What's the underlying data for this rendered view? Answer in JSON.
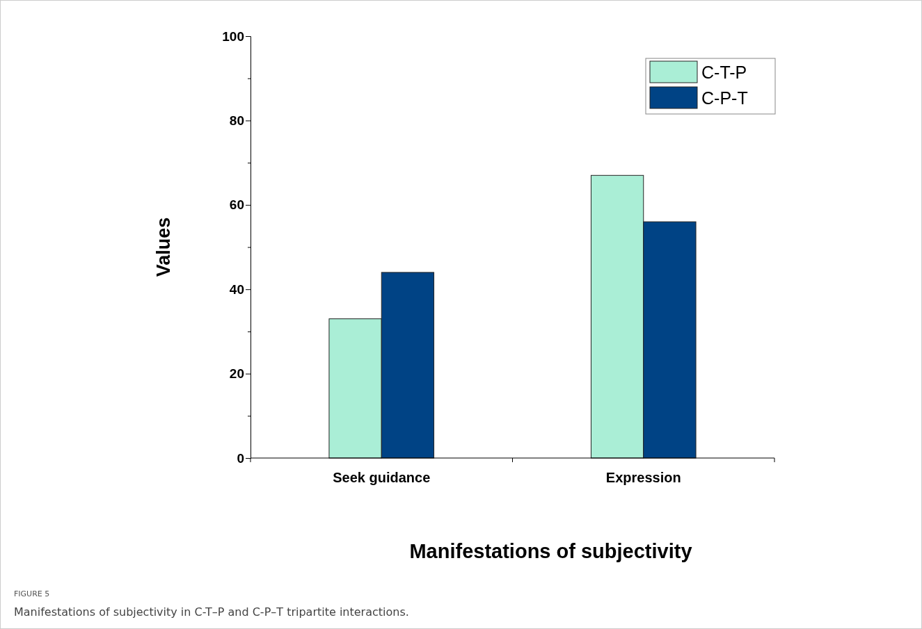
{
  "chart_data": {
    "type": "bar",
    "xlabel": "Manifestations of subjectivity",
    "ylabel": "Values",
    "categories": [
      "Seek guidance",
      "Expression"
    ],
    "series": [
      {
        "name": "C-T-P",
        "color": "#aaeed6",
        "values": [
          33,
          67
        ]
      },
      {
        "name": "C-P-T",
        "color": "#004385",
        "values": [
          44,
          56
        ]
      }
    ],
    "ylim": [
      0,
      100
    ],
    "yticks": [
      0,
      {
        "value": 10,
        "label": null
      },
      20,
      {
        "value": 30,
        "label": null
      },
      40,
      {
        "value": 50,
        "label": null
      },
      60,
      {
        "value": 70,
        "label": null
      },
      80,
      {
        "value": 90,
        "label": null
      },
      100
    ],
    "legend": "top right",
    "annotations": [
      "FIGURE 5",
      "Manifestations of subjectivity in C-T–P and C-P–T tripartite interactions."
    ]
  }
}
